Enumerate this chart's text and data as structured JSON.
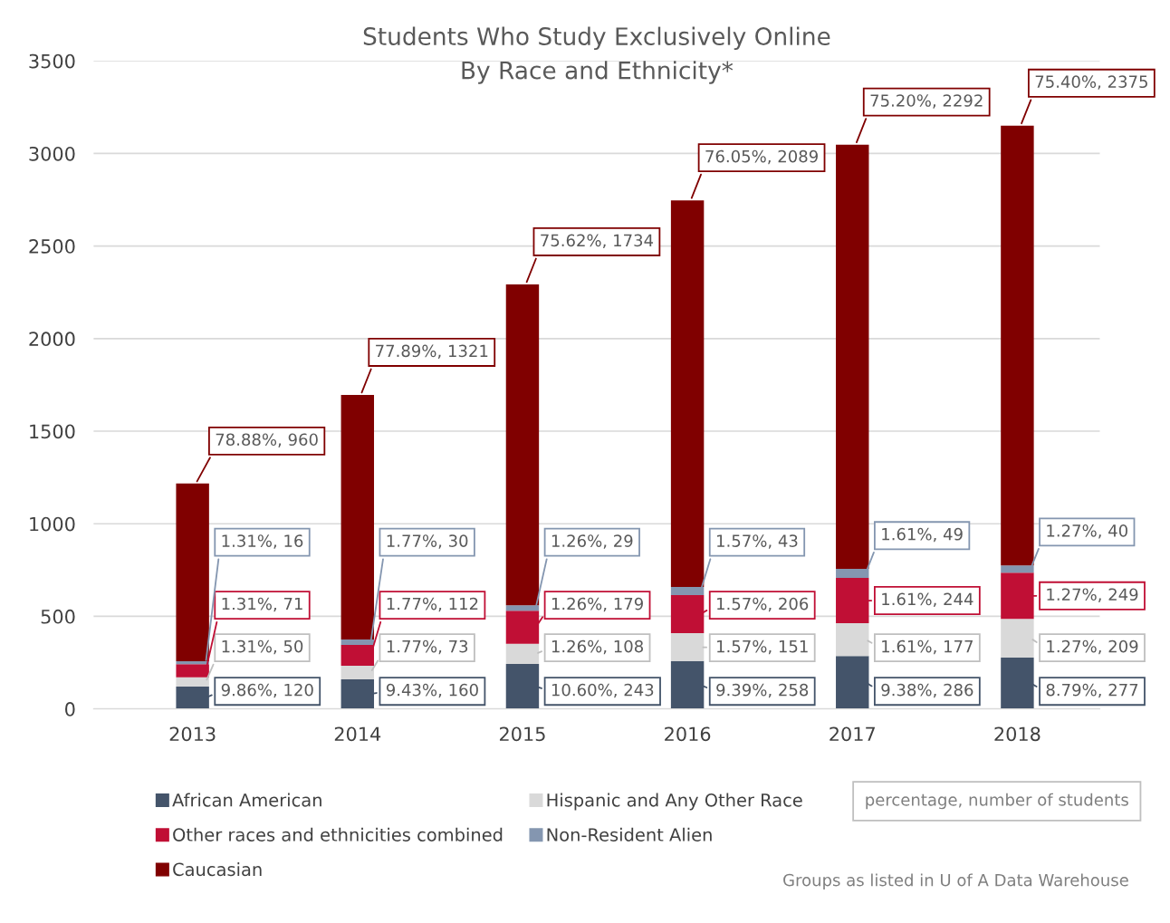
{
  "chart_data": {
    "type": "bar",
    "stacked": true,
    "title": "Students Who Study Exclusively Online\nBy Race and Ethnicity*",
    "categories": [
      "2013",
      "2014",
      "2015",
      "2016",
      "2017",
      "2018"
    ],
    "series": [
      {
        "name": "African American",
        "color": "#44546a",
        "values": [
          120,
          160,
          243,
          258,
          286,
          277
        ],
        "value_labels": [
          "9.86%, 120",
          "9.43%, 160",
          "10.60%, 243",
          "9.39%, 258",
          "9.38%, 286",
          "8.79%, 277"
        ]
      },
      {
        "name": "Hispanic and Any Other Race",
        "color": "#d9d9d9",
        "values": [
          50,
          73,
          108,
          151,
          177,
          209
        ],
        "value_labels": [
          "1.31%, 50",
          "1.77%, 73",
          "1.26%, 108",
          "1.57%, 151",
          "1.61%, 177",
          "1.27%, 209"
        ]
      },
      {
        "name": "Other races and ethnicities combined",
        "color": "#c00f35",
        "values": [
          71,
          112,
          179,
          206,
          244,
          249
        ],
        "value_labels": [
          "1.31%, 71",
          "1.77%, 112",
          "1.26%, 179",
          "1.57%, 206",
          "1.61%, 244",
          "1.27%, 249"
        ]
      },
      {
        "name": "Non-Resident Alien",
        "color": "#8496b0",
        "values": [
          16,
          30,
          29,
          43,
          49,
          40
        ],
        "value_labels": [
          "1.31%, 16",
          "1.77%, 30",
          "1.26%, 29",
          "1.57%, 43",
          "1.61%, 49",
          "1.27%, 40"
        ]
      },
      {
        "name": "Caucasian",
        "color": "#800000",
        "values": [
          960,
          1321,
          1734,
          2089,
          2292,
          2375
        ],
        "value_labels": [
          "78.88%, 960",
          "77.89%, 1321",
          "75.62%, 1734",
          "76.05%, 2089",
          "75.20%, 2292",
          "75.40%, 2375"
        ]
      }
    ],
    "ylim": [
      0,
      3500
    ],
    "yticks": [
      0,
      500,
      1000,
      1500,
      2000,
      2500,
      3000,
      3500
    ],
    "grid": "y",
    "legend": "bottom",
    "annotations": [
      "percentage, number of students",
      "Groups as listed in U of A Data Warehouse"
    ]
  }
}
